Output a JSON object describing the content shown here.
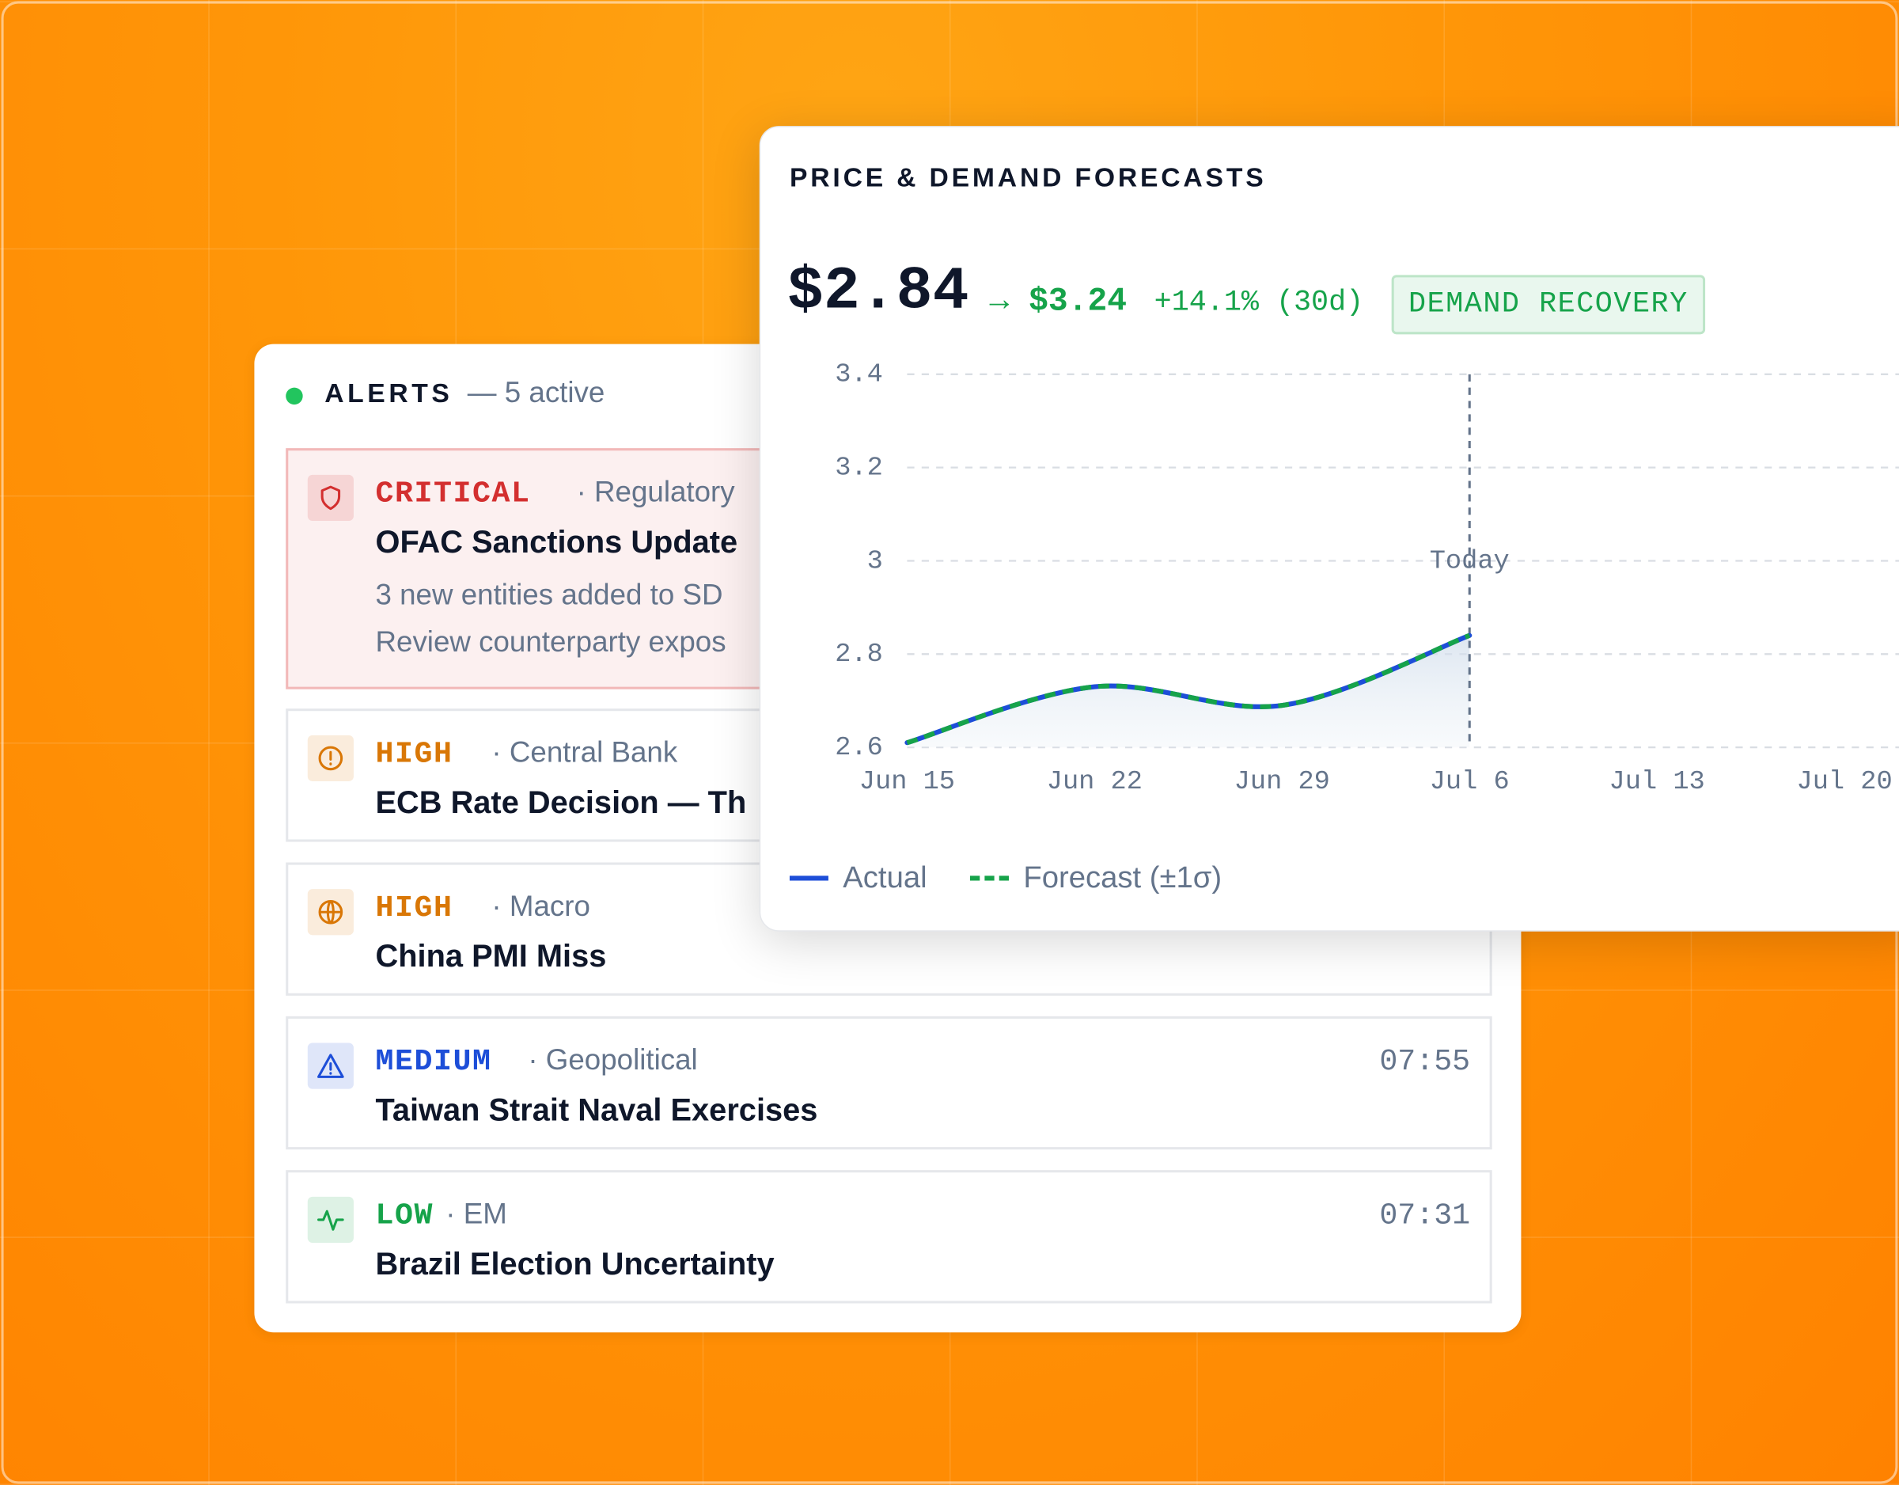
{
  "alerts": {
    "title": "ALERTS",
    "count": "— 5 active",
    "items": [
      {
        "level": "CRITICAL",
        "color": "#d32f2f",
        "highlighted": true,
        "category": "· Regulatory",
        "title": "OFAC Sanctions Update",
        "details": [
          "3 new entities added to SD",
          "Review counterparty expos"
        ]
      },
      {
        "level": "HIGH",
        "color": "#d97706",
        "category": "· Central Bank",
        "title": "ECB Rate Decision — Th"
      },
      {
        "level": "HIGH",
        "color": "#d97706",
        "category": "· Macro",
        "title": "China PMI Miss"
      },
      {
        "level": "MEDIUM",
        "color": "#1d4ed8",
        "category": "· Geopolitical",
        "title": "Taiwan Strait Naval Exercises",
        "time": "07:55"
      },
      {
        "level": "LOW",
        "color": "#16a34a",
        "category": "· EM",
        "title": "Brazil Election Uncertainty",
        "time": "07:31"
      }
    ]
  },
  "forecast": {
    "title": "PRICE & DEMAND FORECASTS",
    "price": "$2.84",
    "target": "→ $3.24",
    "change": "+14.1% (30d)",
    "badge": "DEMAND RECOVERY",
    "chart": {
      "type": "line",
      "categories": [
        "Jun 15",
        "Jun 22",
        "Jun 29",
        "Jul 6",
        "Jul 13",
        "Jul 20"
      ],
      "series": [
        {
          "name": "Actual",
          "color": "#1d4ed8",
          "values": [
            2.61,
            2.73,
            2.69,
            2.84,
            null,
            null
          ]
        },
        {
          "name": "Forecast (±1σ)",
          "color": "#16a34a",
          "dashed": true,
          "values": [
            2.61,
            2.73,
            2.69,
            2.84,
            null,
            null
          ]
        }
      ],
      "ylim": [
        2.6,
        3.4
      ],
      "yticks": [
        2.6,
        2.8,
        3,
        3.2,
        3.4
      ],
      "grid": true,
      "annotation": {
        "label": "Today",
        "x": "Jul 6"
      }
    }
  }
}
